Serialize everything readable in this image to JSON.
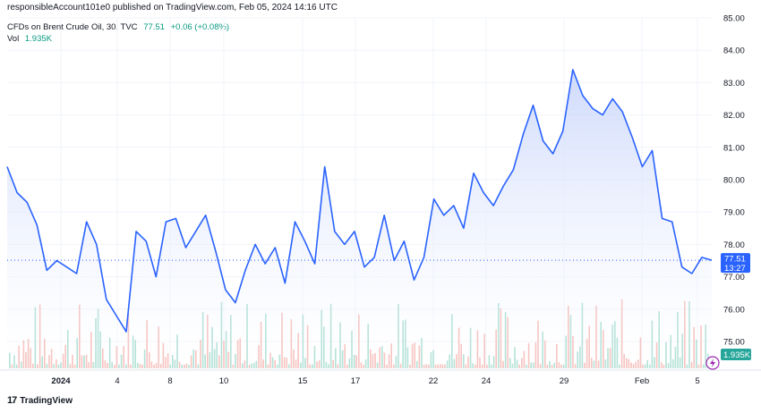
{
  "header": {
    "text": "responsibleAccount101e0 published on TradingView.com, Feb 05, 2024 14:16 UTC"
  },
  "legend": {
    "symbol": "CFDs on Brent Crude Oil, 30, TVC",
    "price": "77.51",
    "change": "+0.06 (+0.08%)",
    "vol_label": "Vol",
    "vol_value": "1.935K"
  },
  "price_axis": {
    "ticks": [
      "85.00",
      "84.00",
      "83.00",
      "82.00",
      "81.00",
      "80.00",
      "79.00",
      "78.00",
      "77.00",
      "76.00",
      "75.00"
    ],
    "last_price": "77.51",
    "countdown": "13:27",
    "volume_tag": "1.935K"
  },
  "time_axis": {
    "ticks": [
      "2024",
      "4",
      "8",
      "10",
      "15",
      "17",
      "22",
      "24",
      "29",
      "Feb",
      "5"
    ]
  },
  "brand": {
    "logo": "17",
    "name": "TradingView"
  },
  "colors": {
    "line": "#2962ff",
    "area_top": "#c9d6fb",
    "vol_up": "#8fd3c3",
    "vol_down": "#f2a7a2",
    "label_bg": "#2962ff"
  },
  "chart_data": {
    "type": "area",
    "title": "CFDs on Brent Crude Oil, 30, TVC",
    "ylim": [
      74.7,
      85.0
    ],
    "x_ticks": [
      "2024",
      "4",
      "8",
      "10",
      "15",
      "17",
      "22",
      "24",
      "29",
      "Feb",
      "5"
    ],
    "series": [
      {
        "values": [
          80.4,
          79.6,
          79.3,
          78.6,
          77.2,
          77.5,
          77.3,
          77.1,
          78.7,
          78.0,
          76.3,
          75.8,
          75.3,
          78.4,
          78.1,
          77.0,
          78.7,
          78.8,
          77.9,
          78.4,
          78.9,
          77.8,
          76.6,
          76.2,
          77.2,
          78.0,
          77.4,
          77.9,
          76.8,
          78.7,
          78.1,
          77.4,
          80.4,
          78.4,
          78.0,
          78.4,
          77.3,
          77.6,
          78.9,
          77.5,
          78.1,
          76.9,
          77.6,
          79.4,
          78.9,
          79.2,
          78.5,
          80.2,
          79.6,
          79.2,
          79.8,
          80.3,
          81.4,
          82.3,
          81.2,
          80.8,
          81.5,
          83.4,
          82.6,
          82.2,
          82.0,
          82.5,
          82.1,
          81.3,
          80.4,
          80.9,
          78.8,
          78.7,
          77.3,
          77.1,
          77.6,
          77.51
        ]
      }
    ]
  }
}
